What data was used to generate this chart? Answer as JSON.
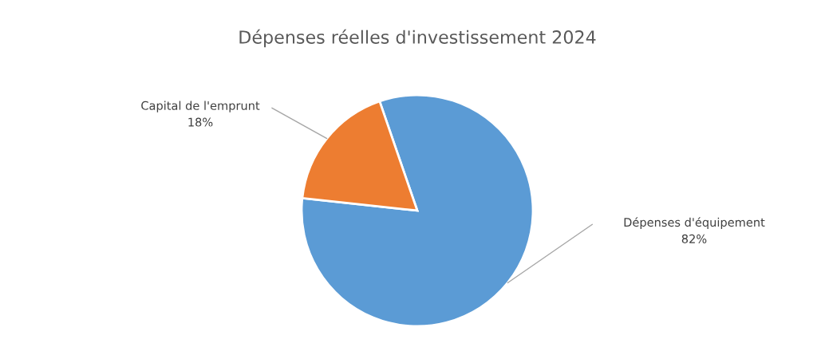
{
  "chart_data": {
    "type": "pie",
    "title": "Dépenses réelles d'investissement 2024",
    "categories": [
      "Dépenses d'équipement",
      "Capital de l'emprunt"
    ],
    "values": [
      82,
      18
    ],
    "colors": [
      "#5b9bd5",
      "#ed7d31"
    ],
    "value_labels": [
      "82%",
      "18%"
    ],
    "legend": false
  }
}
